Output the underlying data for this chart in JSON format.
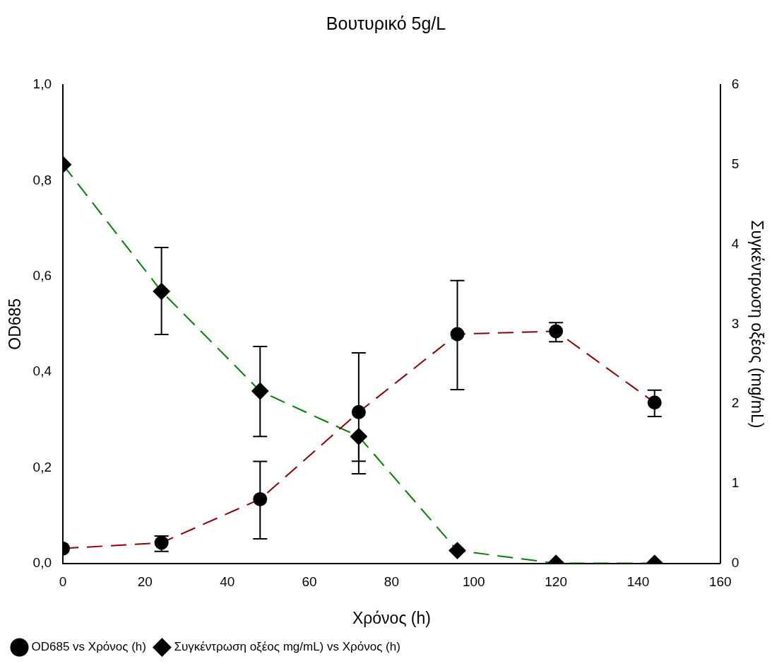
{
  "chart_data": {
    "type": "line",
    "title": "Βουτυρικό 5g/L",
    "xlabel": "Χρόνος (h)",
    "ylabel": "OD685",
    "y2label": "Συγκέντρωση οξέος (mg/mL)",
    "x": [
      0,
      24,
      48,
      72,
      96,
      120,
      144
    ],
    "series": [
      {
        "name": "OD685 vs Χρόνος (h)",
        "color": "#8b0000",
        "marker": "circle",
        "values": [
          0.031,
          0.043,
          0.134,
          0.316,
          0.479,
          0.485,
          0.336
        ],
        "errors": [
          null,
          [
            0.025,
            0.057
          ],
          [
            0.051,
            0.213
          ],
          [
            0.187,
            0.44
          ],
          [
            0.363,
            0.591
          ],
          [
            0.463,
            0.503
          ],
          [
            0.307,
            0.362
          ]
        ]
      },
      {
        "name": "Συγκέντρωση οξέος mg/mL) vs Χρόνος (h)",
        "color": "#008000",
        "marker": "diamond",
        "axis": "y2",
        "values": [
          5.0,
          3.41,
          2.16,
          1.59,
          0.16,
          0,
          0
        ],
        "errors": [
          null,
          [
            2.87,
            3.96
          ],
          [
            1.59,
            2.72
          ],
          [
            1.28,
            1.59
          ],
          null,
          null,
          null
        ]
      }
    ],
    "xlim": [
      0,
      160
    ],
    "xticks": [
      0,
      20,
      40,
      60,
      80,
      100,
      120,
      140,
      160
    ],
    "ylim": [
      0,
      1
    ],
    "yticks": [
      {
        "value": 0,
        "label": "0,0"
      },
      {
        "value": 0.2,
        "label": "0,2"
      },
      {
        "value": 0.4,
        "label": "0,4"
      },
      {
        "value": 0.6,
        "label": "0,6"
      },
      {
        "value": 0.8,
        "label": "0,8"
      },
      {
        "value": 1,
        "label": "1,0"
      }
    ],
    "y2lim": [
      0,
      6
    ],
    "y2ticks": [
      0,
      1,
      2,
      3,
      4,
      5,
      6
    ],
    "line_style": "dashed",
    "grid": false,
    "legend": "bottom"
  }
}
